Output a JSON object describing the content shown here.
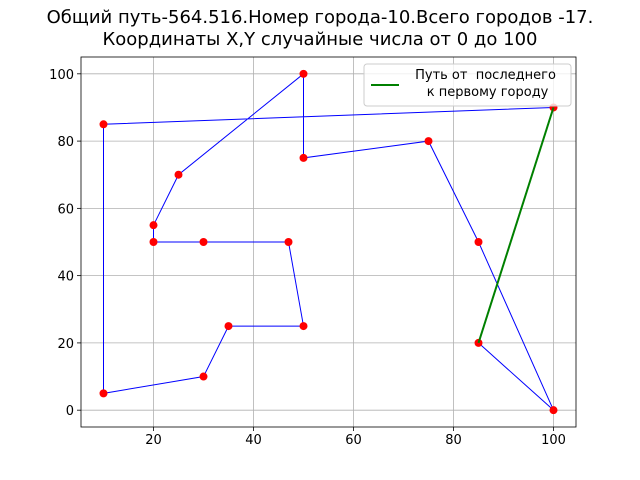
{
  "chart_data": {
    "type": "line",
    "title": "Общий путь-564.516.Номер города-10.Всего городов -17.\nКоординаты X,Y случайные числа от 0 до 100",
    "series": [
      {
        "color": "#0000ff",
        "marker_color": "#ff0000",
        "marker": true,
        "x": [
          100,
          10,
          10,
          30,
          35,
          50,
          47,
          30,
          20,
          20,
          25,
          50,
          50,
          75,
          85,
          100,
          85
        ],
        "values": [
          90,
          85,
          5,
          10,
          25,
          25,
          50,
          50,
          50,
          55,
          70,
          100,
          75,
          80,
          50,
          0,
          20
        ]
      },
      {
        "name": "Путь от  последнего\n к первому городу",
        "color": "#008000",
        "marker": false,
        "x": [
          85,
          100
        ],
        "values": [
          20,
          90
        ]
      }
    ],
    "xlim": [
      5.5,
      104.5
    ],
    "ylim": [
      -5,
      105
    ],
    "xticks": [
      20,
      40,
      60,
      80,
      100
    ],
    "yticks": [
      0,
      20,
      40,
      60,
      80,
      100
    ],
    "grid": true,
    "legend_position": "upper right"
  }
}
